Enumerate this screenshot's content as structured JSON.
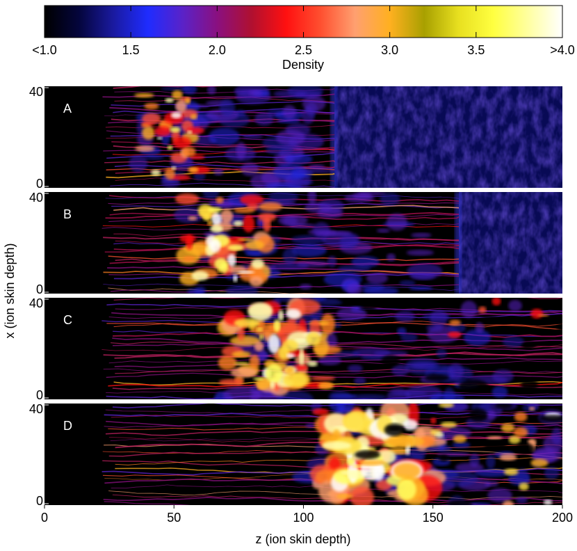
{
  "chart_data": {
    "type": "heatmap",
    "colorbar": {
      "label": "Density",
      "ticks": [
        "<1.0",
        "1.5",
        "2.0",
        "2.5",
        "3.0",
        "3.5",
        ">4.0"
      ],
      "tick_values": [
        1.0,
        1.5,
        2.0,
        2.5,
        3.0,
        3.5,
        4.0
      ],
      "range": [
        1.0,
        4.0
      ],
      "colormap": [
        "#000000",
        "#04053c",
        "#1a1aa0",
        "#1f2cff",
        "#5a22c8",
        "#8a1080",
        "#b01030",
        "#ff1010",
        "#ff5030",
        "#ffa070",
        "#ffb020",
        "#a8a000",
        "#e8e020",
        "#ffff40",
        "#ffffa0",
        "#ffffff"
      ]
    },
    "xlabel": "z (ion skin depth)",
    "ylabel": "x (ion skin depth)",
    "xlim": [
      0,
      200
    ],
    "ylim": [
      0,
      40
    ],
    "xticks": [
      "0",
      "50",
      "100",
      "150",
      "200"
    ],
    "xtick_values": [
      0,
      50,
      100,
      150,
      200
    ],
    "yticks": [
      "0",
      "40"
    ],
    "yticks_values": [
      0,
      40
    ],
    "panels": [
      {
        "label": "A",
        "front_z": 112,
        "filament_start_z": 22,
        "dense_core_z": [
          38,
          62
        ],
        "upstream_density": 1.3
      },
      {
        "label": "B",
        "front_z": 160,
        "filament_start_z": 22,
        "dense_core_z": [
          54,
          88
        ],
        "upstream_density": 1.3
      },
      {
        "label": "C",
        "front_z": 202,
        "filament_start_z": 22,
        "dense_core_z": [
          70,
          110
        ],
        "upstream_density": 1.3
      },
      {
        "label": "D",
        "front_z": 202,
        "filament_start_z": 22,
        "dense_core_z": [
          105,
          150
        ],
        "upstream_density": 1.3
      }
    ]
  }
}
